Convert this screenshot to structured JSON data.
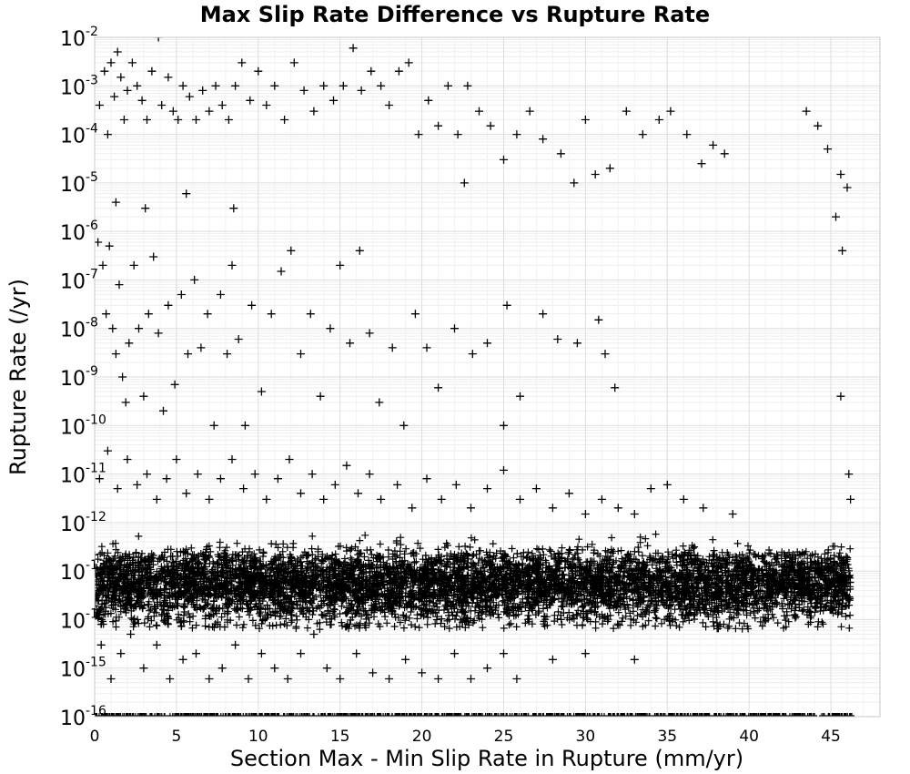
{
  "chart_data": {
    "type": "scatter",
    "title": "Max Slip Rate Difference vs Rupture Rate",
    "xlabel": "Section Max - Min Slip Rate in Rupture (mm/yr)",
    "ylabel": "Rupture Rate (/yr)",
    "xlim": [
      0,
      48
    ],
    "ylim": [
      1e-16,
      0.01
    ],
    "y_scale": "log",
    "grid": true,
    "legend": "none",
    "marker": "plus",
    "marker_color": "#000000",
    "x_ticks": [
      0,
      5,
      10,
      15,
      20,
      25,
      30,
      35,
      40,
      45
    ],
    "y_ticks": [
      {
        "base": "10",
        "exp": "-16"
      },
      {
        "base": "10",
        "exp": "-15"
      },
      {
        "base": "10",
        "exp": "-14"
      },
      {
        "base": "10",
        "exp": "-13"
      },
      {
        "base": "10",
        "exp": "-12"
      },
      {
        "base": "10",
        "exp": "-11"
      },
      {
        "base": "10",
        "exp": "-10"
      },
      {
        "base": "10",
        "exp": "-9"
      },
      {
        "base": "10",
        "exp": "-8"
      },
      {
        "base": "10",
        "exp": "-7"
      },
      {
        "base": "10",
        "exp": "-6"
      },
      {
        "base": "10",
        "exp": "-5"
      },
      {
        "base": "10",
        "exp": "-4"
      },
      {
        "base": "10",
        "exp": "-3"
      },
      {
        "base": "10",
        "exp": "-2"
      }
    ],
    "series": [
      {
        "points": [
          [
            0.3,
            0.0004
          ],
          [
            0.6,
            0.002
          ],
          [
            0.8,
            0.0001
          ],
          [
            1.0,
            0.003
          ],
          [
            1.2,
            0.0006
          ],
          [
            1.4,
            0.005
          ],
          [
            1.6,
            0.0015
          ],
          [
            1.8,
            0.0002
          ],
          [
            2.0,
            0.0008
          ],
          [
            2.3,
            0.003
          ],
          [
            2.6,
            0.001
          ],
          [
            2.9,
            0.0005
          ],
          [
            3.2,
            0.0002
          ],
          [
            3.5,
            0.002
          ],
          [
            3.9,
            0.01
          ],
          [
            4.1,
            0.0004
          ],
          [
            4.5,
            0.0015
          ],
          [
            4.8,
            0.0003
          ],
          [
            5.1,
            0.0002
          ],
          [
            5.4,
            0.001
          ],
          [
            5.8,
            0.0006
          ],
          [
            6.2,
            0.0002
          ],
          [
            6.6,
            0.0008
          ],
          [
            7.0,
            0.0003
          ],
          [
            7.4,
            0.001
          ],
          [
            7.8,
            0.0004
          ],
          [
            8.2,
            0.0002
          ],
          [
            8.6,
            0.001
          ],
          [
            9.0,
            0.003
          ],
          [
            9.5,
            0.0005
          ],
          [
            10.0,
            0.002
          ],
          [
            10.5,
            0.0004
          ],
          [
            11.0,
            0.001
          ],
          [
            11.6,
            0.0002
          ],
          [
            12.2,
            0.003
          ],
          [
            12.8,
            0.0008
          ],
          [
            13.4,
            0.0003
          ],
          [
            14.0,
            0.001
          ],
          [
            14.6,
            0.0005
          ],
          [
            15.2,
            0.001
          ],
          [
            15.8,
            0.006
          ],
          [
            16.3,
            0.0008
          ],
          [
            16.9,
            0.002
          ],
          [
            17.5,
            0.001
          ],
          [
            18.0,
            0.0004
          ],
          [
            18.6,
            0.002
          ],
          [
            19.2,
            0.003
          ],
          [
            19.8,
            0.0001
          ],
          [
            20.4,
            0.0005
          ],
          [
            21.0,
            0.00015
          ],
          [
            21.6,
            0.001
          ],
          [
            22.2,
            0.0001
          ],
          [
            22.8,
            0.001
          ],
          [
            23.5,
            0.0003
          ],
          [
            24.2,
            0.00015
          ],
          [
            25.0,
            3e-05
          ],
          [
            25.8,
            0.0001
          ],
          [
            26.6,
            0.0003
          ],
          [
            27.4,
            8e-05
          ],
          [
            28.5,
            4e-05
          ],
          [
            29.3,
            1e-05
          ],
          [
            30.0,
            0.0002
          ],
          [
            30.6,
            1.5e-05
          ],
          [
            31.5,
            2e-05
          ],
          [
            32.5,
            0.0003
          ],
          [
            33.5,
            0.0001
          ],
          [
            34.5,
            0.0002
          ],
          [
            35.2,
            0.0003
          ],
          [
            36.2,
            0.0001
          ],
          [
            37.1,
            2.5e-05
          ],
          [
            37.8,
            6e-05
          ],
          [
            38.5,
            4e-05
          ],
          [
            43.5,
            0.0003
          ],
          [
            44.2,
            0.00015
          ],
          [
            44.8,
            5e-05
          ],
          [
            45.6,
            1.5e-05
          ],
          [
            46.0,
            8e-06
          ],
          [
            1.3,
            4e-06
          ],
          [
            3.1,
            3e-06
          ],
          [
            5.6,
            6e-06
          ],
          [
            8.5,
            3e-06
          ],
          [
            22.6,
            1e-05
          ],
          [
            45.3,
            2e-06
          ],
          [
            45.7,
            4e-07
          ],
          [
            0.2,
            6e-07
          ],
          [
            0.5,
            2e-07
          ],
          [
            0.7,
            2e-08
          ],
          [
            0.9,
            5e-07
          ],
          [
            1.1,
            1e-08
          ],
          [
            1.3,
            3e-09
          ],
          [
            1.5,
            8e-08
          ],
          [
            1.7,
            1e-09
          ],
          [
            1.9,
            3e-10
          ],
          [
            2.1,
            5e-09
          ],
          [
            2.4,
            2e-07
          ],
          [
            2.7,
            1e-08
          ],
          [
            3.0,
            4e-10
          ],
          [
            3.3,
            2e-08
          ],
          [
            3.6,
            3e-07
          ],
          [
            3.9,
            8e-09
          ],
          [
            4.2,
            2e-10
          ],
          [
            4.5,
            3e-08
          ],
          [
            4.9,
            7e-10
          ],
          [
            5.3,
            5e-08
          ],
          [
            5.7,
            3e-09
          ],
          [
            6.1,
            1e-07
          ],
          [
            6.5,
            4e-09
          ],
          [
            6.9,
            2e-08
          ],
          [
            7.3,
            1e-10
          ],
          [
            7.7,
            5e-08
          ],
          [
            8.1,
            3e-09
          ],
          [
            8.4,
            2e-07
          ],
          [
            8.8,
            6e-09
          ],
          [
            9.2,
            1e-10
          ],
          [
            9.6,
            3e-08
          ],
          [
            10.2,
            5e-10
          ],
          [
            10.8,
            2e-08
          ],
          [
            11.4,
            1.5e-07
          ],
          [
            12.0,
            4e-07
          ],
          [
            12.6,
            3e-09
          ],
          [
            13.2,
            2e-08
          ],
          [
            13.8,
            4e-10
          ],
          [
            14.4,
            1e-08
          ],
          [
            15.0,
            2e-07
          ],
          [
            15.6,
            5e-09
          ],
          [
            16.2,
            4e-07
          ],
          [
            16.8,
            8e-09
          ],
          [
            17.4,
            3e-10
          ],
          [
            18.2,
            4e-09
          ],
          [
            18.9,
            1e-10
          ],
          [
            19.6,
            2e-08
          ],
          [
            20.3,
            4e-09
          ],
          [
            21.0,
            6e-10
          ],
          [
            22.0,
            1e-08
          ],
          [
            23.1,
            3e-09
          ],
          [
            24.0,
            5e-09
          ],
          [
            25.0,
            1e-10
          ],
          [
            25.2,
            3e-08
          ],
          [
            26.0,
            4e-10
          ],
          [
            27.4,
            2e-08
          ],
          [
            28.3,
            6e-09
          ],
          [
            29.5,
            5e-09
          ],
          [
            30.8,
            1.5e-08
          ],
          [
            31.2,
            3e-09
          ],
          [
            31.8,
            6e-10
          ],
          [
            45.6,
            4e-10
          ],
          [
            0.3,
            8e-12
          ],
          [
            0.8,
            3e-11
          ],
          [
            1.4,
            5e-12
          ],
          [
            2.0,
            2e-11
          ],
          [
            2.6,
            6e-12
          ],
          [
            3.2,
            1e-11
          ],
          [
            3.8,
            3e-12
          ],
          [
            4.4,
            8e-12
          ],
          [
            5.0,
            2e-11
          ],
          [
            5.6,
            4e-12
          ],
          [
            6.3,
            1e-11
          ],
          [
            7.0,
            3e-12
          ],
          [
            7.7,
            8e-12
          ],
          [
            8.4,
            2e-11
          ],
          [
            9.1,
            5e-12
          ],
          [
            9.8,
            1e-11
          ],
          [
            10.5,
            3e-12
          ],
          [
            11.2,
            8e-12
          ],
          [
            11.9,
            2e-11
          ],
          [
            12.6,
            4e-12
          ],
          [
            13.3,
            1e-11
          ],
          [
            14.0,
            3e-12
          ],
          [
            14.7,
            6e-12
          ],
          [
            15.4,
            1.5e-11
          ],
          [
            16.1,
            4e-12
          ],
          [
            16.8,
            1e-11
          ],
          [
            17.5,
            3e-12
          ],
          [
            18.5,
            6e-12
          ],
          [
            19.4,
            2e-12
          ],
          [
            20.3,
            8e-12
          ],
          [
            21.2,
            3e-12
          ],
          [
            22.1,
            6e-12
          ],
          [
            23.0,
            2e-12
          ],
          [
            24.0,
            5e-12
          ],
          [
            25.0,
            1.2e-11
          ],
          [
            26.0,
            3e-12
          ],
          [
            27.0,
            5e-12
          ],
          [
            28.0,
            2e-12
          ],
          [
            29.0,
            4e-12
          ],
          [
            30.0,
            1.5e-12
          ],
          [
            31.0,
            3e-12
          ],
          [
            32.0,
            2e-12
          ],
          [
            33.0,
            1.5e-12
          ],
          [
            34.0,
            5e-12
          ],
          [
            35.0,
            6e-12
          ],
          [
            36.0,
            3e-12
          ],
          [
            37.2,
            2e-12
          ],
          [
            39.0,
            1.5e-12
          ],
          [
            46.1,
            1e-11
          ],
          [
            46.2,
            3e-12
          ],
          [
            0.4,
            3e-15
          ],
          [
            1.0,
            6e-16
          ],
          [
            1.6,
            2e-15
          ],
          [
            2.2,
            5e-15
          ],
          [
            3.0,
            1e-15
          ],
          [
            3.8,
            3e-15
          ],
          [
            4.6,
            6e-16
          ],
          [
            5.4,
            1.5e-15
          ],
          [
            6.2,
            2e-15
          ],
          [
            7.0,
            6e-16
          ],
          [
            7.8,
            1e-15
          ],
          [
            8.6,
            3e-15
          ],
          [
            9.4,
            6e-16
          ],
          [
            10.2,
            2e-15
          ],
          [
            11.0,
            1e-15
          ],
          [
            11.8,
            6e-16
          ],
          [
            12.6,
            2e-15
          ],
          [
            13.4,
            5e-15
          ],
          [
            14.2,
            1e-15
          ],
          [
            15.0,
            6e-16
          ],
          [
            16.0,
            2e-15
          ],
          [
            17.0,
            8e-16
          ],
          [
            18.0,
            6e-16
          ],
          [
            19.0,
            1.5e-15
          ],
          [
            20.0,
            8e-16
          ],
          [
            21.0,
            6e-16
          ],
          [
            22.0,
            2e-15
          ],
          [
            23.0,
            6e-16
          ],
          [
            24.0,
            1e-15
          ],
          [
            25.0,
            2e-15
          ],
          [
            25.8,
            6e-16
          ],
          [
            28.0,
            1.5e-15
          ],
          [
            30.0,
            2e-15
          ],
          [
            33.0,
            1.5e-15
          ]
        ]
      }
    ]
  }
}
